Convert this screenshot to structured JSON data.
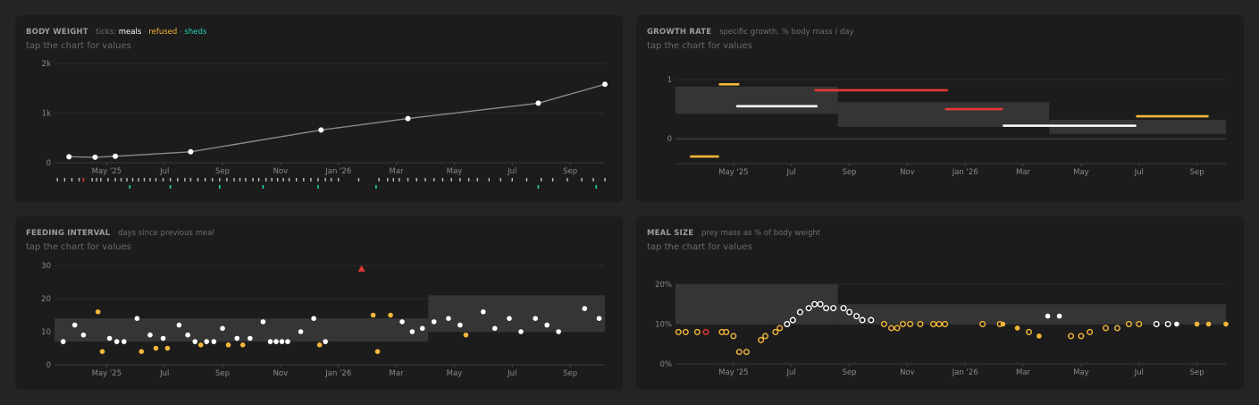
{
  "colors": {
    "white": "#ffffff",
    "orange": "#f5b73a",
    "red": "#e53935",
    "teal": "#1fd1b0",
    "line": "#8a8a8a",
    "band": "#353535",
    "grid": "#2c2c2c"
  },
  "panels": {
    "body_weight": {
      "title": "BODY WEIGHT",
      "ticks_label": "ticks:",
      "meals": "meals",
      "refused": "refused",
      "sheds": "sheds",
      "sep1": " · ",
      "sep2": " · ",
      "hint": "tap the chart for values"
    },
    "growth_rate": {
      "title": "GROWTH RATE",
      "subtitle": "specific growth, % body mass / day",
      "hint": "tap the chart for values"
    },
    "feeding_interval": {
      "title": "FEEDING INTERVAL",
      "subtitle": "days since previous meal",
      "hint": "tap the chart for values"
    },
    "meal_size": {
      "title": "MEAL SIZE",
      "subtitle": "prey mass as % of body weight",
      "hint": "tap the chart for values"
    }
  },
  "chart_data": [
    {
      "id": "body_weight",
      "type": "line",
      "xlim": [
        0,
        19
      ],
      "ylim": [
        0,
        2000
      ],
      "yticks": [
        {
          "v": 0,
          "label": "0"
        },
        {
          "v": 1000,
          "label": "1k"
        },
        {
          "v": 2000,
          "label": "2k"
        }
      ],
      "xticks": [
        {
          "v": 1.8,
          "label": "May '25"
        },
        {
          "v": 3.8,
          "label": "Jul"
        },
        {
          "v": 5.8,
          "label": "Sep"
        },
        {
          "v": 7.8,
          "label": "Nov"
        },
        {
          "v": 9.8,
          "label": "Jan '26"
        },
        {
          "v": 11.8,
          "label": "Mar"
        },
        {
          "v": 13.8,
          "label": "May"
        },
        {
          "v": 15.8,
          "label": "Jul"
        },
        {
          "v": 17.8,
          "label": "Sep"
        }
      ],
      "points": [
        {
          "x": 0.5,
          "y": 120
        },
        {
          "x": 1.4,
          "y": 110
        },
        {
          "x": 2.1,
          "y": 130
        },
        {
          "x": 4.7,
          "y": 220
        },
        {
          "x": 9.2,
          "y": 660
        },
        {
          "x": 12.2,
          "y": 890
        },
        {
          "x": 16.7,
          "y": 1200
        },
        {
          "x": 19.0,
          "y": 1580
        }
      ],
      "meal_ticks": [
        0.1,
        0.35,
        0.6,
        0.85,
        1.3,
        1.45,
        1.6,
        1.85,
        2.1,
        2.3,
        2.5,
        2.7,
        2.9,
        3.1,
        3.3,
        3.5,
        3.75,
        4.0,
        4.25,
        4.5,
        4.7,
        4.95,
        5.2,
        5.45,
        5.7,
        5.95,
        6.2,
        6.4,
        6.6,
        6.85,
        7.05,
        7.3,
        7.5,
        7.7,
        7.9,
        8.1,
        8.35,
        8.6,
        8.85,
        9.1,
        9.35,
        9.55,
        9.8,
        10.5,
        11.2,
        11.5,
        11.7,
        11.9,
        12.2,
        12.5,
        12.8,
        13.1,
        13.4,
        13.7,
        14.0,
        14.3,
        14.6,
        15.0,
        15.4,
        15.8,
        16.3,
        16.8,
        17.2,
        17.7,
        18.2,
        18.6,
        19.0
      ],
      "refused_ticks": [
        1.0
      ],
      "shed_ticks": [
        2.6,
        4.0,
        5.7,
        7.2,
        9.1,
        11.1,
        16.7,
        18.7
      ]
    },
    {
      "id": "growth_rate",
      "type": "step",
      "xlim": [
        0,
        19
      ],
      "ylim": [
        -0.42,
        1.06
      ],
      "yticks": [
        {
          "v": 0,
          "label": "0"
        },
        {
          "v": 1,
          "label": "1"
        }
      ],
      "xticks": [
        {
          "v": 2.0,
          "label": "May '25"
        },
        {
          "v": 4.0,
          "label": "Jul"
        },
        {
          "v": 6.0,
          "label": "Sep"
        },
        {
          "v": 8.0,
          "label": "Nov"
        },
        {
          "v": 10.0,
          "label": "Jan '26"
        },
        {
          "v": 12.0,
          "label": "Mar"
        },
        {
          "v": 14.0,
          "label": "May"
        },
        {
          "v": 16.0,
          "label": "Jul"
        },
        {
          "v": 18.0,
          "label": "Sep"
        }
      ],
      "bands": [
        {
          "x0": 0,
          "x1": 5.6,
          "y0": 0.42,
          "y1": 0.88
        },
        {
          "x0": 5.6,
          "x1": 12.9,
          "y0": 0.2,
          "y1": 0.62
        },
        {
          "x0": 12.9,
          "x1": 19,
          "y0": 0.08,
          "y1": 0.32
        }
      ],
      "segments": [
        {
          "x0": 0.5,
          "x1": 1.5,
          "y": -0.3,
          "status": "refused"
        },
        {
          "x0": 1.5,
          "x1": 2.2,
          "y": 0.92,
          "status": "refused"
        },
        {
          "x0": 2.1,
          "x1": 4.9,
          "y": 0.55,
          "status": "meal"
        },
        {
          "x0": 4.8,
          "x1": 9.4,
          "y": 0.82,
          "status": "red"
        },
        {
          "x0": 9.3,
          "x1": 11.3,
          "y": 0.5,
          "status": "red"
        },
        {
          "x0": 11.3,
          "x1": 15.9,
          "y": 0.22,
          "status": "meal"
        },
        {
          "x0": 15.9,
          "x1": 18.4,
          "y": 0.38,
          "status": "refused"
        }
      ]
    },
    {
      "id": "feeding_interval",
      "type": "scatter",
      "xlim": [
        0,
        19
      ],
      "ylim": [
        0,
        30
      ],
      "yticks": [
        {
          "v": 0,
          "label": "0"
        },
        {
          "v": 10,
          "label": "10"
        },
        {
          "v": 20,
          "label": "20"
        },
        {
          "v": 30,
          "label": "30"
        }
      ],
      "xticks": [
        {
          "v": 1.8,
          "label": "May '25"
        },
        {
          "v": 3.8,
          "label": "Jul"
        },
        {
          "v": 5.8,
          "label": "Sep"
        },
        {
          "v": 7.8,
          "label": "Nov"
        },
        {
          "v": 9.8,
          "label": "Jan '26"
        },
        {
          "v": 11.8,
          "label": "Mar"
        },
        {
          "v": 13.8,
          "label": "May"
        },
        {
          "v": 15.8,
          "label": "Jul"
        },
        {
          "v": 17.8,
          "label": "Sep"
        }
      ],
      "bands": [
        {
          "x0": 0,
          "x1": 12.9,
          "y0": 7,
          "y1": 14
        },
        {
          "x0": 12.9,
          "x1": 19,
          "y0": 10,
          "y1": 21
        }
      ],
      "points": [
        {
          "x": 0.3,
          "y": 7,
          "s": "meal"
        },
        {
          "x": 0.7,
          "y": 12,
          "s": "meal"
        },
        {
          "x": 1.0,
          "y": 9,
          "s": "meal"
        },
        {
          "x": 1.5,
          "y": 16,
          "s": "refused"
        },
        {
          "x": 1.65,
          "y": 4,
          "s": "refused"
        },
        {
          "x": 1.9,
          "y": 8,
          "s": "meal"
        },
        {
          "x": 2.15,
          "y": 7,
          "s": "meal"
        },
        {
          "x": 2.4,
          "y": 7,
          "s": "meal"
        },
        {
          "x": 2.85,
          "y": 14,
          "s": "meal"
        },
        {
          "x": 3.0,
          "y": 4,
          "s": "refused"
        },
        {
          "x": 3.3,
          "y": 9,
          "s": "meal"
        },
        {
          "x": 3.5,
          "y": 5,
          "s": "refused"
        },
        {
          "x": 3.75,
          "y": 8,
          "s": "meal"
        },
        {
          "x": 3.9,
          "y": 5,
          "s": "refused"
        },
        {
          "x": 4.3,
          "y": 12,
          "s": "meal"
        },
        {
          "x": 4.6,
          "y": 9,
          "s": "meal"
        },
        {
          "x": 4.85,
          "y": 7,
          "s": "meal"
        },
        {
          "x": 5.05,
          "y": 6,
          "s": "refused"
        },
        {
          "x": 5.25,
          "y": 7,
          "s": "meal"
        },
        {
          "x": 5.5,
          "y": 7,
          "s": "meal"
        },
        {
          "x": 5.8,
          "y": 11,
          "s": "meal"
        },
        {
          "x": 6.0,
          "y": 6,
          "s": "refused"
        },
        {
          "x": 6.3,
          "y": 8,
          "s": "meal"
        },
        {
          "x": 6.5,
          "y": 6,
          "s": "refused"
        },
        {
          "x": 6.75,
          "y": 8,
          "s": "meal"
        },
        {
          "x": 7.2,
          "y": 13,
          "s": "meal"
        },
        {
          "x": 7.45,
          "y": 7,
          "s": "meal"
        },
        {
          "x": 7.65,
          "y": 7,
          "s": "meal"
        },
        {
          "x": 7.85,
          "y": 7,
          "s": "meal"
        },
        {
          "x": 8.05,
          "y": 7,
          "s": "meal"
        },
        {
          "x": 8.5,
          "y": 10,
          "s": "meal"
        },
        {
          "x": 8.95,
          "y": 14,
          "s": "meal"
        },
        {
          "x": 9.15,
          "y": 6,
          "s": "refused"
        },
        {
          "x": 9.35,
          "y": 7,
          "s": "meal"
        },
        {
          "x": 11.0,
          "y": 15,
          "s": "refused"
        },
        {
          "x": 11.15,
          "y": 4,
          "s": "refused"
        },
        {
          "x": 11.6,
          "y": 15,
          "s": "refused"
        },
        {
          "x": 12.0,
          "y": 13,
          "s": "meal"
        },
        {
          "x": 12.35,
          "y": 10,
          "s": "meal"
        },
        {
          "x": 12.7,
          "y": 11,
          "s": "meal"
        },
        {
          "x": 13.1,
          "y": 13,
          "s": "meal"
        },
        {
          "x": 13.6,
          "y": 14,
          "s": "meal"
        },
        {
          "x": 14.0,
          "y": 12,
          "s": "meal"
        },
        {
          "x": 14.2,
          "y": 9,
          "s": "refused"
        },
        {
          "x": 14.8,
          "y": 16,
          "s": "meal"
        },
        {
          "x": 15.2,
          "y": 11,
          "s": "meal"
        },
        {
          "x": 15.7,
          "y": 14,
          "s": "meal"
        },
        {
          "x": 16.1,
          "y": 10,
          "s": "meal"
        },
        {
          "x": 16.6,
          "y": 14,
          "s": "meal"
        },
        {
          "x": 17.0,
          "y": 12,
          "s": "meal"
        },
        {
          "x": 17.4,
          "y": 10,
          "s": "meal"
        },
        {
          "x": 18.3,
          "y": 17,
          "s": "meal"
        },
        {
          "x": 18.8,
          "y": 14,
          "s": "meal"
        }
      ],
      "markers": [
        {
          "x": 10.6,
          "y": 29,
          "s": "red"
        }
      ]
    },
    {
      "id": "meal_size",
      "type": "scatter",
      "xlim": [
        0,
        19
      ],
      "ylim": [
        0,
        20
      ],
      "yticks": [
        {
          "v": 0,
          "label": "0%"
        },
        {
          "v": 10,
          "label": "10%"
        },
        {
          "v": 20,
          "label": "20%"
        }
      ],
      "xticks": [
        {
          "v": 2.0,
          "label": "May '25"
        },
        {
          "v": 4.0,
          "label": "Jul"
        },
        {
          "v": 6.0,
          "label": "Sep"
        },
        {
          "v": 8.0,
          "label": "Nov"
        },
        {
          "v": 10.0,
          "label": "Jan '26"
        },
        {
          "v": 12.0,
          "label": "Mar"
        },
        {
          "v": 14.0,
          "label": "May"
        },
        {
          "v": 16.0,
          "label": "Jul"
        },
        {
          "v": 18.0,
          "label": "Sep"
        }
      ],
      "bands": [
        {
          "x0": 0,
          "x1": 5.6,
          "y0": 10,
          "y1": 20
        },
        {
          "x0": 5.6,
          "x1": 19,
          "y0": 10,
          "y1": 15
        }
      ],
      "points": [
        {
          "x": 0.1,
          "y": 8,
          "s": "refused",
          "o": 1
        },
        {
          "x": 0.35,
          "y": 8,
          "s": "refused",
          "o": 1
        },
        {
          "x": 0.75,
          "y": 8,
          "s": "refused",
          "o": 1
        },
        {
          "x": 1.05,
          "y": 8,
          "s": "red",
          "o": 1
        },
        {
          "x": 1.6,
          "y": 8,
          "s": "refused",
          "o": 1
        },
        {
          "x": 1.75,
          "y": 8,
          "s": "refused",
          "o": 1
        },
        {
          "x": 2.0,
          "y": 7,
          "s": "refused",
          "o": 1
        },
        {
          "x": 2.2,
          "y": 3,
          "s": "refused",
          "o": 1
        },
        {
          "x": 2.45,
          "y": 3,
          "s": "refused",
          "o": 1
        },
        {
          "x": 2.95,
          "y": 6,
          "s": "refused",
          "o": 1
        },
        {
          "x": 3.1,
          "y": 7,
          "s": "refused",
          "o": 1
        },
        {
          "x": 3.45,
          "y": 8,
          "s": "refused",
          "o": 1
        },
        {
          "x": 3.6,
          "y": 9,
          "s": "refused",
          "o": 1
        },
        {
          "x": 3.85,
          "y": 10,
          "s": "meal",
          "o": 1
        },
        {
          "x": 4.05,
          "y": 11,
          "s": "meal",
          "o": 1
        },
        {
          "x": 4.3,
          "y": 13,
          "s": "meal",
          "o": 1
        },
        {
          "x": 4.6,
          "y": 14,
          "s": "meal",
          "o": 1
        },
        {
          "x": 4.8,
          "y": 15,
          "s": "meal",
          "o": 1
        },
        {
          "x": 5.0,
          "y": 15,
          "s": "meal",
          "o": 1
        },
        {
          "x": 5.2,
          "y": 14,
          "s": "meal",
          "o": 1
        },
        {
          "x": 5.45,
          "y": 14,
          "s": "meal",
          "o": 1
        },
        {
          "x": 5.8,
          "y": 14,
          "s": "meal",
          "o": 1
        },
        {
          "x": 6.0,
          "y": 13,
          "s": "meal",
          "o": 1
        },
        {
          "x": 6.25,
          "y": 12,
          "s": "meal",
          "o": 1
        },
        {
          "x": 6.45,
          "y": 11,
          "s": "meal",
          "o": 1
        },
        {
          "x": 6.75,
          "y": 11,
          "s": "meal",
          "o": 1
        },
        {
          "x": 7.2,
          "y": 10,
          "s": "refused",
          "o": 1
        },
        {
          "x": 7.45,
          "y": 9,
          "s": "refused",
          "o": 1
        },
        {
          "x": 7.65,
          "y": 9,
          "s": "refused",
          "o": 1
        },
        {
          "x": 7.85,
          "y": 10,
          "s": "refused",
          "o": 1
        },
        {
          "x": 8.1,
          "y": 10,
          "s": "refused",
          "o": 1
        },
        {
          "x": 8.45,
          "y": 10,
          "s": "refused",
          "o": 1
        },
        {
          "x": 8.9,
          "y": 10,
          "s": "refused",
          "o": 1
        },
        {
          "x": 9.1,
          "y": 10,
          "s": "refused",
          "o": 1
        },
        {
          "x": 9.3,
          "y": 10,
          "s": "refused",
          "o": 1
        },
        {
          "x": 10.6,
          "y": 10,
          "s": "refused",
          "o": 1
        },
        {
          "x": 11.2,
          "y": 10,
          "s": "refused",
          "o": 1
        },
        {
          "x": 11.3,
          "y": 10,
          "s": "refused",
          "o": 0
        },
        {
          "x": 11.8,
          "y": 9,
          "s": "refused",
          "o": 0
        },
        {
          "x": 12.2,
          "y": 8,
          "s": "refused",
          "o": 1
        },
        {
          "x": 12.55,
          "y": 7,
          "s": "refused",
          "o": 0
        },
        {
          "x": 12.85,
          "y": 12,
          "s": "meal",
          "o": 0
        },
        {
          "x": 13.25,
          "y": 12,
          "s": "meal",
          "o": 0
        },
        {
          "x": 13.65,
          "y": 7,
          "s": "refused",
          "o": 1
        },
        {
          "x": 14.0,
          "y": 7,
          "s": "refused",
          "o": 1
        },
        {
          "x": 14.3,
          "y": 8,
          "s": "refused",
          "o": 1
        },
        {
          "x": 14.85,
          "y": 9,
          "s": "refused",
          "o": 1
        },
        {
          "x": 15.25,
          "y": 9,
          "s": "refused",
          "o": 1
        },
        {
          "x": 15.65,
          "y": 10,
          "s": "refused",
          "o": 1
        },
        {
          "x": 16.0,
          "y": 10,
          "s": "refused",
          "o": 1
        },
        {
          "x": 16.6,
          "y": 10,
          "s": "meal",
          "o": 1
        },
        {
          "x": 17.0,
          "y": 10,
          "s": "meal",
          "o": 1
        },
        {
          "x": 17.3,
          "y": 10,
          "s": "meal",
          "o": 0
        },
        {
          "x": 18.0,
          "y": 10,
          "s": "refused",
          "o": 0
        },
        {
          "x": 18.4,
          "y": 10,
          "s": "refused",
          "o": 0
        },
        {
          "x": 19.0,
          "y": 10,
          "s": "refused",
          "o": 0
        }
      ]
    }
  ]
}
